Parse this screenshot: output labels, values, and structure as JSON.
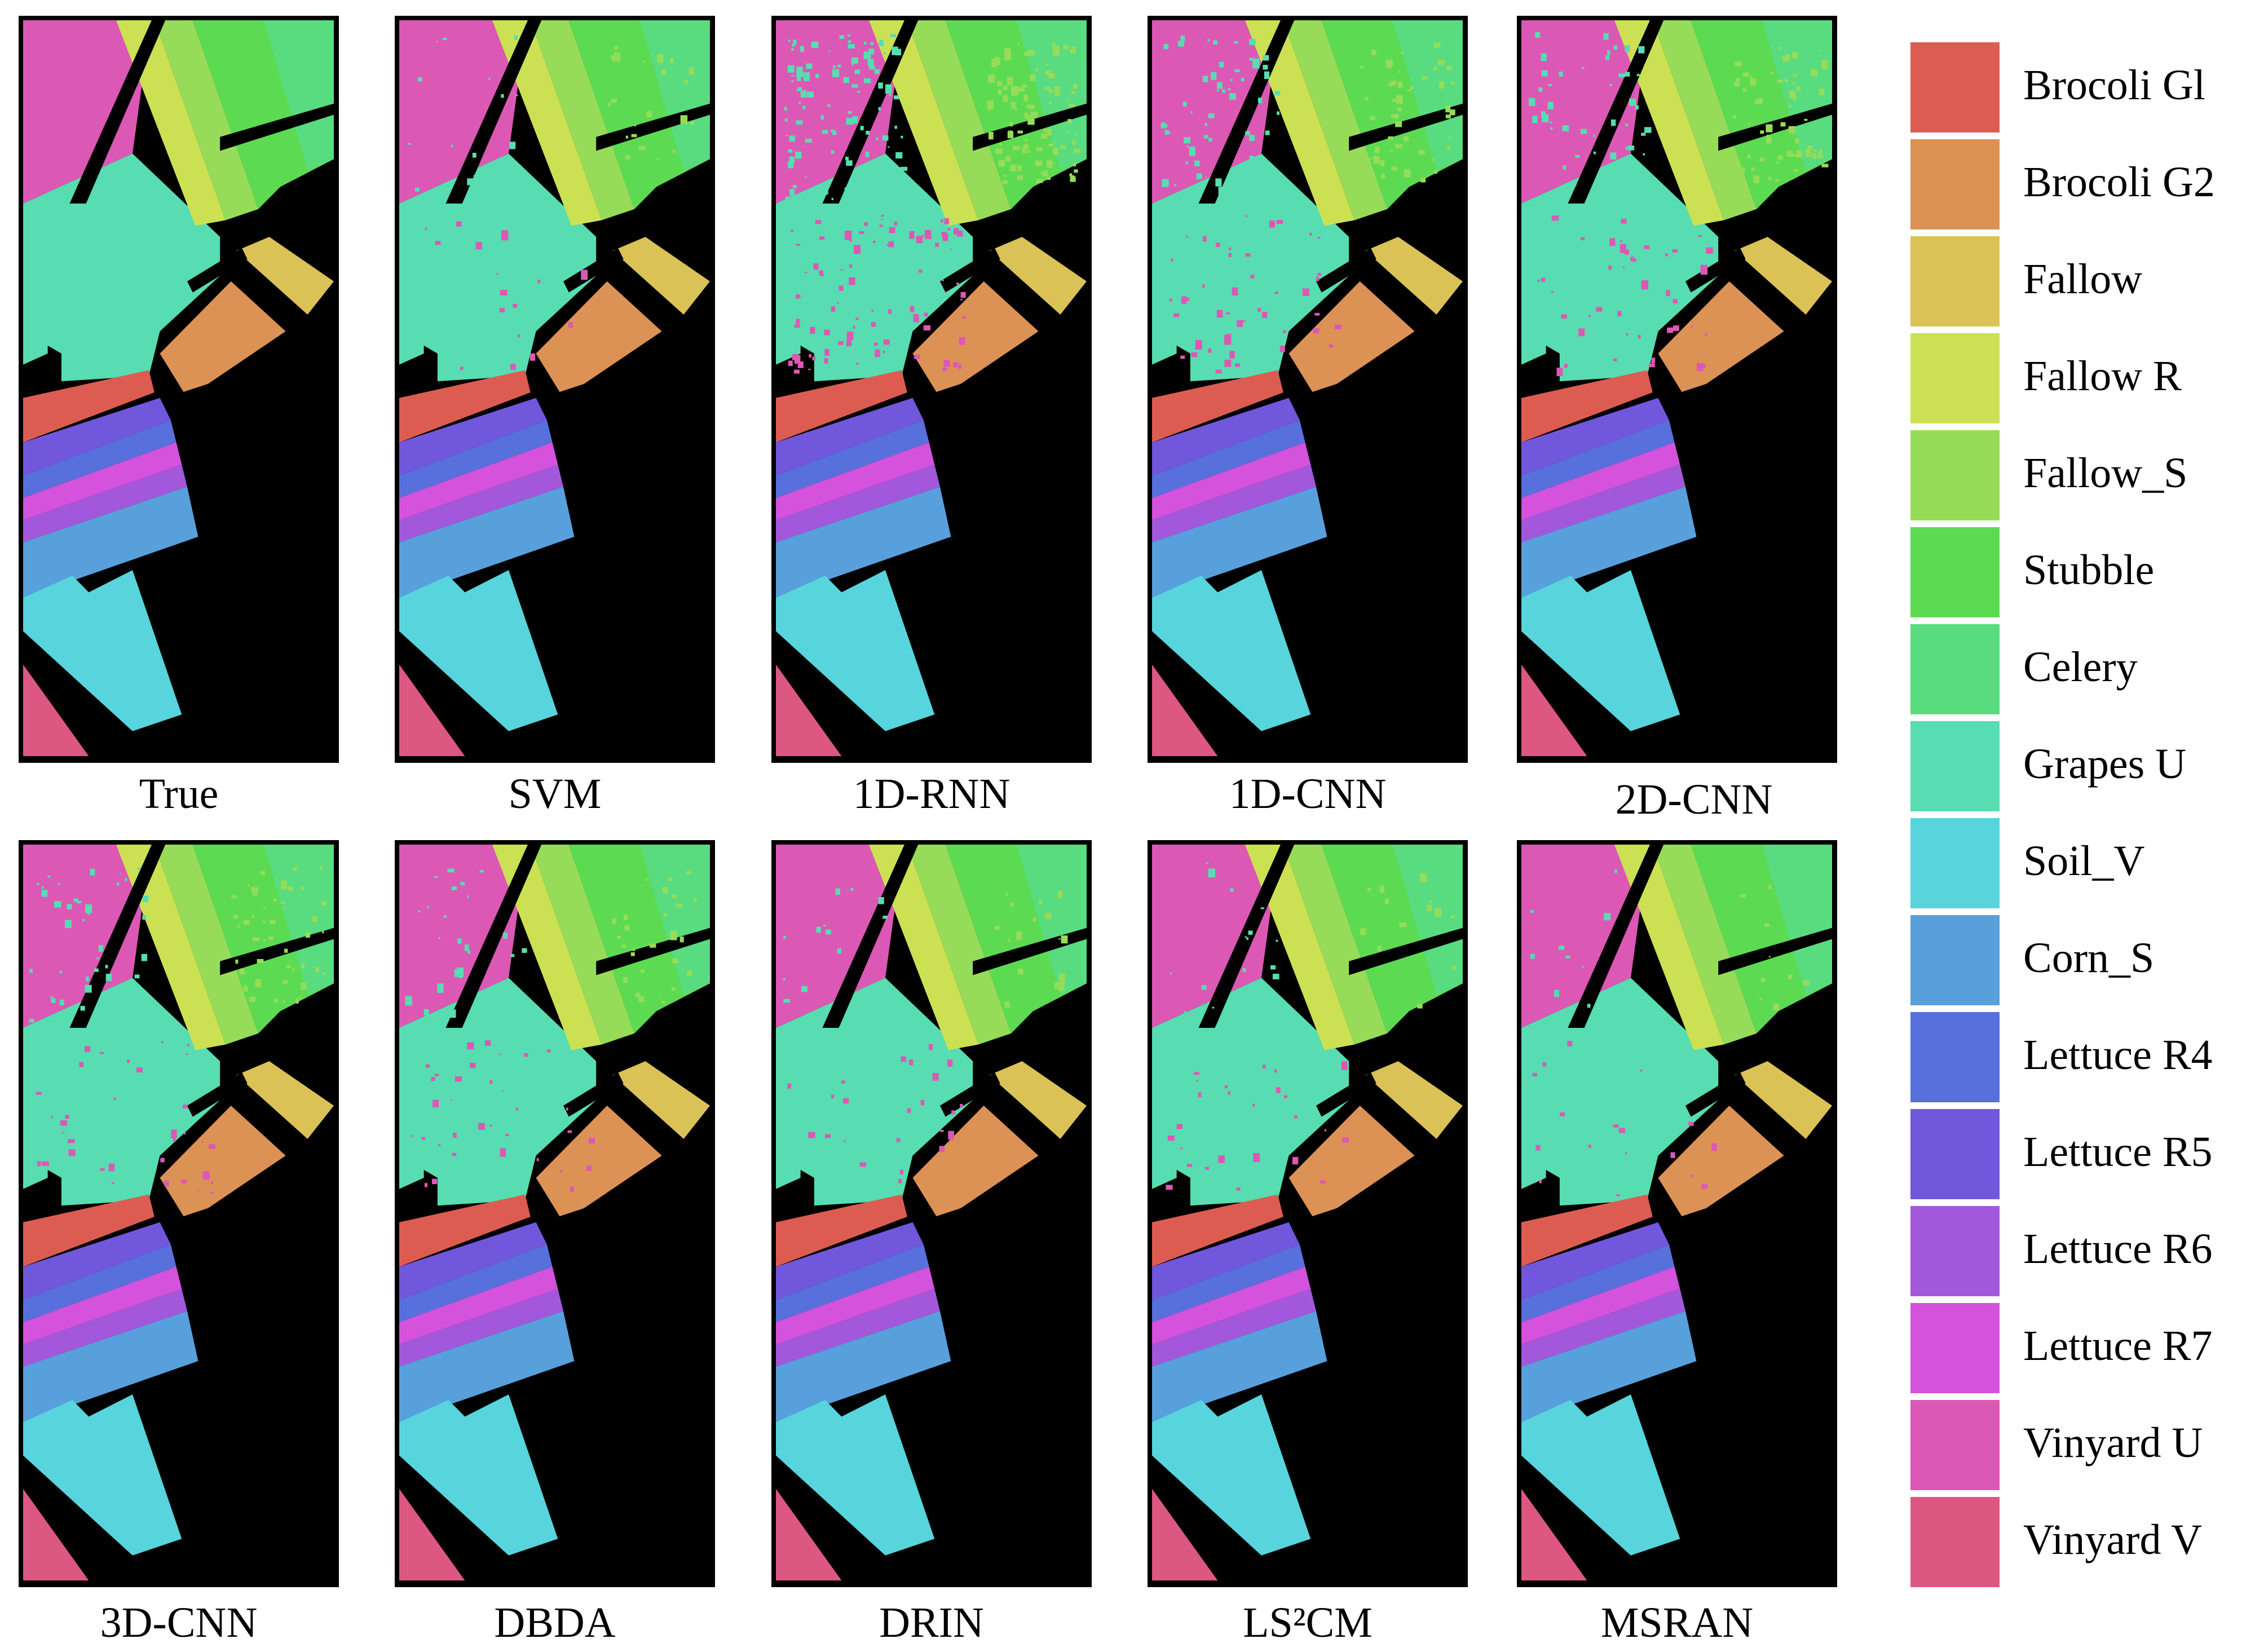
{
  "figure": {
    "panels": [
      {
        "caption": "True",
        "noise": 0
      },
      {
        "caption": "SVM",
        "noise": 0.03
      },
      {
        "caption": "1D-RNN",
        "noise": 0.16
      },
      {
        "caption": "1D-CNN",
        "noise": 0.09
      },
      {
        "caption": "2D-CNN",
        "noise": 0.08
      },
      {
        "caption": "3D-CNN",
        "noise": 0.07
      },
      {
        "caption": "DBDA",
        "noise": 0.05
      },
      {
        "caption": "DRIN",
        "noise": 0.03
      },
      {
        "caption": "LS²CM",
        "noise": 0.03
      },
      {
        "caption": "MSRAN",
        "noise": 0.02
      }
    ],
    "background_color": "#000000"
  },
  "legend": {
    "items": [
      {
        "label": "Brocoli Gl",
        "color": "#dd5c52"
      },
      {
        "label": "Brocoli G2",
        "color": "#dc9255"
      },
      {
        "label": "Fallow",
        "color": "#dbc257"
      },
      {
        "label": "Fallow R",
        "color": "#cbe153"
      },
      {
        "label": "Fallow_S",
        "color": "#96dc58"
      },
      {
        "label": "Stubble",
        "color": "#5cdb52"
      },
      {
        "label": "Celery",
        "color": "#58dc7f"
      },
      {
        "label": "Grapes U",
        "color": "#57ddb1"
      },
      {
        "label": "Soil_V",
        "color": "#57d4dc"
      },
      {
        "label": "Corn_S",
        "color": "#58a0dc"
      },
      {
        "label": "Lettuce R4",
        "color": "#5870dc"
      },
      {
        "label": "Lettuce R5",
        "color": "#7157dc"
      },
      {
        "label": "Lettuce R6",
        "color": "#a358dc"
      },
      {
        "label": "Lettuce R7",
        "color": "#d452dc"
      },
      {
        "label": "Vinyard U",
        "color": "#dc58b5"
      },
      {
        "label": "Vinyard V",
        "color": "#dc5782"
      }
    ]
  }
}
